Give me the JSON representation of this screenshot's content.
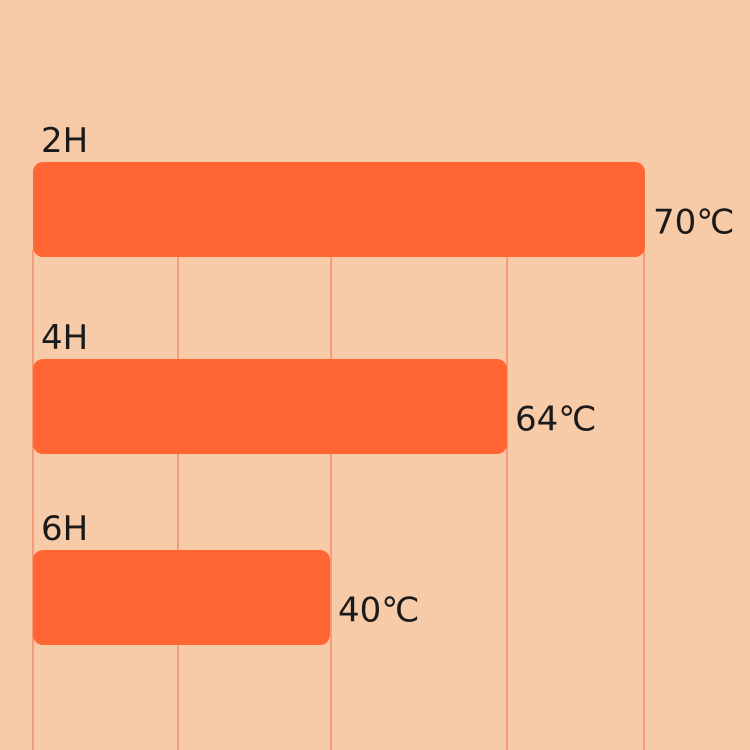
{
  "chart_data": {
    "type": "bar",
    "orientation": "horizontal",
    "title": "",
    "xlabel": "",
    "ylabel": "",
    "categories": [
      "2H",
      "4H",
      "6H"
    ],
    "values": [
      70,
      64,
      40
    ],
    "value_labels": [
      "70℃",
      "64℃",
      "40℃"
    ],
    "unit": "℃",
    "grid": true,
    "legend": "none",
    "colors": {
      "bar": "#ff6633",
      "background": "#f8cba8",
      "grid": "#f28b6a",
      "text": "#1a1a1a"
    }
  }
}
